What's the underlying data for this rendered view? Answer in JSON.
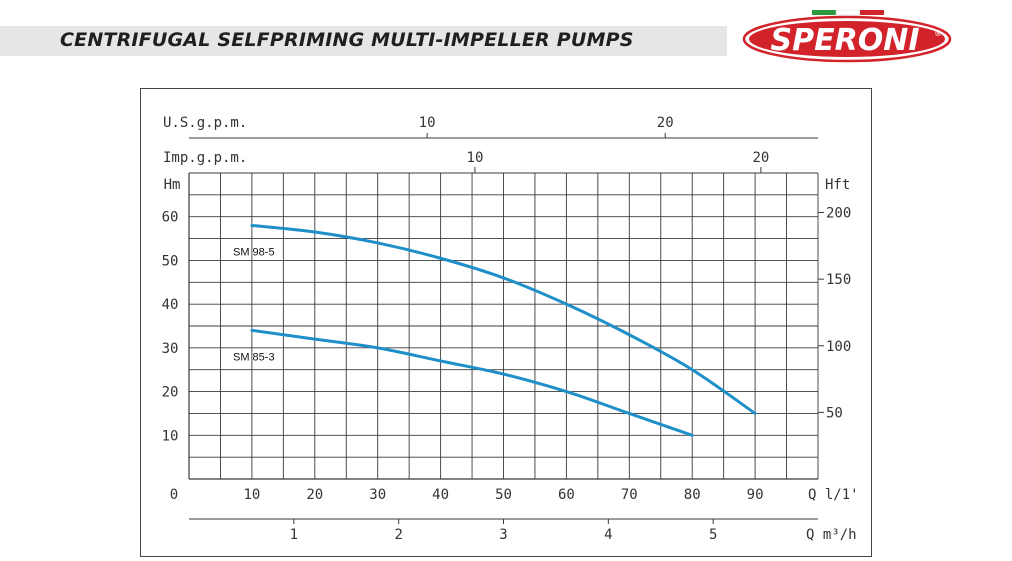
{
  "header": {
    "title": "CENTRIFUGAL SELFPRIMING MULTI-IMPELLER PUMPS",
    "brand": "SPERONI",
    "brand_mark": "®"
  },
  "colors": {
    "curve": "#1e8fc8",
    "brand_red": "#d3232a",
    "grid": "#3a3a3a",
    "header_bg": "#e6e6e6"
  },
  "chart_data": {
    "type": "line",
    "x_unit_label": "Q l/1'",
    "y_left_label": "Hm",
    "y_right_label": "Hft",
    "secondary_x_top1_label": "U.S.g.p.m.",
    "secondary_x_top2_label": "Imp.g.p.m.",
    "secondary_x_bottom_label": "Q m³/h",
    "x_ticks": [
      "0",
      "10",
      "20",
      "30",
      "40",
      "50",
      "60",
      "70",
      "80",
      "90"
    ],
    "y_ticks": [
      "10",
      "20",
      "30",
      "40",
      "50",
      "60"
    ],
    "y_right_ticks": [
      "50",
      "100",
      "150",
      "200"
    ],
    "usgpm_ticks": [
      "10",
      "20"
    ],
    "impgpm_ticks": [
      "10",
      "20"
    ],
    "m3h_ticks": [
      "1",
      "2",
      "3",
      "4",
      "5"
    ],
    "xlim": [
      0,
      100
    ],
    "ylim": [
      0,
      70
    ],
    "series": [
      {
        "name": "SM 98-5",
        "x": [
          10,
          20,
          30,
          40,
          50,
          60,
          70,
          80,
          90
        ],
        "y": [
          58,
          56.5,
          54,
          50.5,
          46,
          40,
          33,
          25,
          15
        ]
      },
      {
        "name": "SM 85-3",
        "x": [
          10,
          20,
          30,
          40,
          50,
          60,
          70,
          80
        ],
        "y": [
          34,
          32,
          30,
          27,
          24,
          20,
          15,
          10
        ]
      }
    ]
  }
}
